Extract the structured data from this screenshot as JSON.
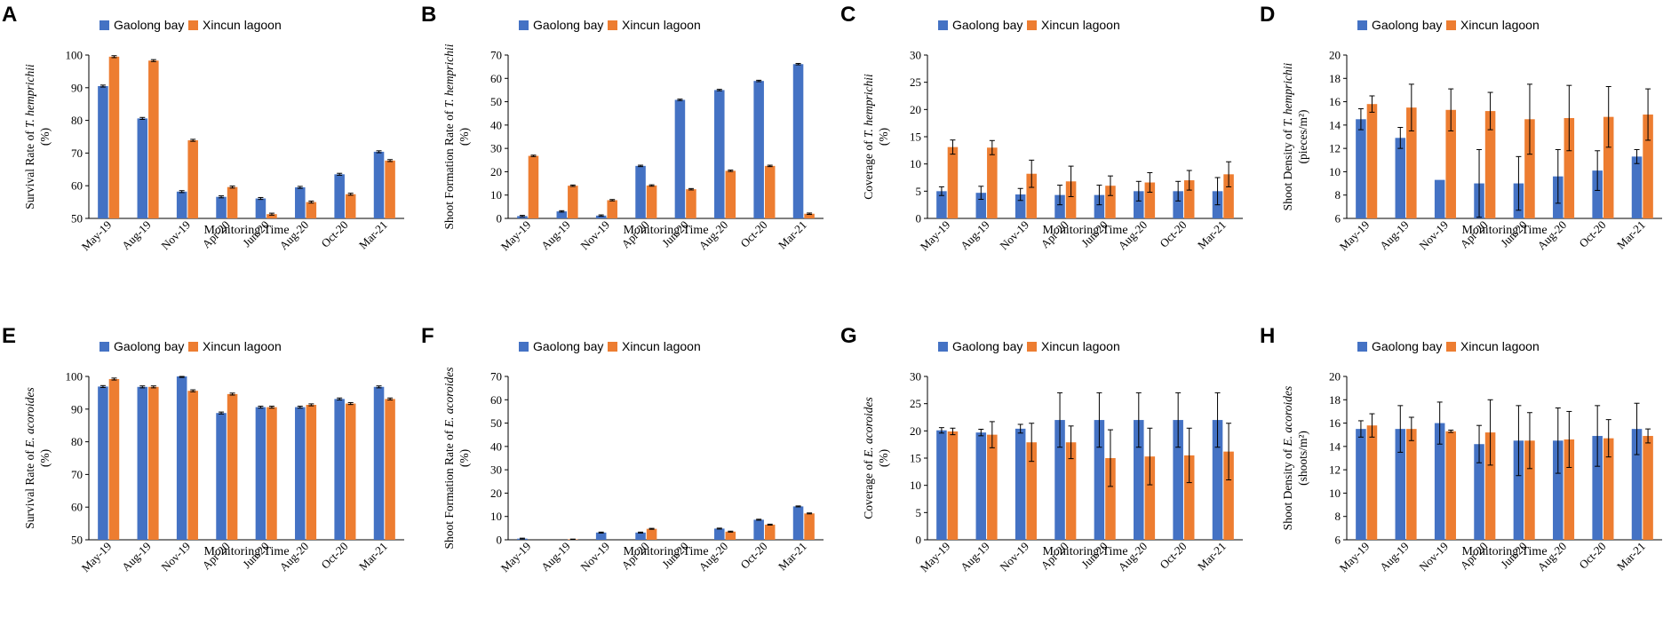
{
  "figure": {
    "colors": {
      "gaolong": "#4472C4",
      "xincun": "#ED7D31",
      "axis": "#000000"
    },
    "series_names": [
      "Gaolong bay",
      "Xincun lagoon"
    ]
  },
  "chart_data": [
    {
      "panel": "A",
      "type": "bar",
      "categories": [
        "May-19",
        "Aug-19",
        "Nov-19",
        "Apr-20",
        "Jun-20",
        "Aug-20",
        "Oct-20",
        "Mar-21"
      ],
      "ylabel_prefix": "Survival Rate of ",
      "ylabel_species": "T. hemprichii",
      "ylabel_unit": "(%)",
      "xlabel": "Monitoring Time",
      "ylim": [
        50,
        100
      ],
      "ystep": 10,
      "series": [
        {
          "name": "Gaolong bay",
          "values": [
            90.5,
            80.6,
            58.2,
            56.6,
            56.1,
            59.5,
            63.5,
            70.4
          ],
          "errors": [
            0.3,
            0.3,
            0.3,
            0.3,
            0.3,
            0.3,
            0.3,
            0.3
          ]
        },
        {
          "name": "Xincun lagoon",
          "values": [
            99.5,
            98.3,
            73.9,
            59.6,
            51.3,
            55.0,
            57.4,
            67.7
          ],
          "errors": [
            0.3,
            0.3,
            0.3,
            0.3,
            0.3,
            0.3,
            0.3,
            0.3
          ]
        }
      ]
    },
    {
      "panel": "B",
      "type": "bar",
      "categories": [
        "May-19",
        "Aug-19",
        "Nov-19",
        "Apr-20",
        "Jun-20",
        "Aug-20",
        "Oct-20",
        "Mar-21"
      ],
      "ylabel_prefix": "Shoot Formation Rate of ",
      "ylabel_species": "T. hemprichii",
      "ylabel_unit": "(%)",
      "xlabel": "Monitoring Time",
      "ylim": [
        0,
        70
      ],
      "ystep": 10,
      "series": [
        {
          "name": "Gaolong bay",
          "values": [
            1.0,
            3.0,
            1.2,
            22.5,
            50.8,
            55.0,
            58.9,
            66.1
          ],
          "errors": [
            0.3,
            0.3,
            0.3,
            0.3,
            0.3,
            0.3,
            0.3,
            0.3
          ]
        },
        {
          "name": "Xincun lagoon",
          "values": [
            26.8,
            14.0,
            7.8,
            14.1,
            12.5,
            20.4,
            22.5,
            2.0
          ],
          "errors": [
            0.3,
            0.3,
            0.3,
            0.3,
            0.3,
            0.3,
            0.3,
            0.3
          ]
        }
      ]
    },
    {
      "panel": "C",
      "type": "bar",
      "categories": [
        "May-19",
        "Aug-19",
        "Nov-19",
        "Apr-20",
        "Jun-20",
        "Aug-20",
        "Oct-20",
        "Mar-21"
      ],
      "ylabel_prefix": "Coverage  of ",
      "ylabel_species": "T. hemprichii",
      "ylabel_unit": "(%)",
      "xlabel": "Monitoring Time",
      "ylim": [
        0,
        30
      ],
      "ystep": 5,
      "series": [
        {
          "name": "Gaolong bay",
          "values": [
            5.0,
            4.7,
            4.4,
            4.3,
            4.3,
            5.0,
            5.0,
            5.0
          ],
          "errors": [
            0.8,
            1.2,
            1.1,
            1.8,
            1.8,
            1.8,
            1.8,
            2.5
          ]
        },
        {
          "name": "Xincun lagoon",
          "values": [
            13.1,
            13.0,
            8.2,
            6.8,
            6.0,
            6.6,
            7.0,
            8.1
          ],
          "errors": [
            1.3,
            1.3,
            2.5,
            2.8,
            1.8,
            1.8,
            1.8,
            2.3
          ]
        }
      ]
    },
    {
      "panel": "D",
      "type": "bar",
      "categories": [
        "May-19",
        "Aug-19",
        "Nov-19",
        "Apr-20",
        "Jun-20",
        "Aug-20",
        "Oct-20",
        "Mar-21"
      ],
      "ylabel_prefix": "Shoot Density of ",
      "ylabel_species": "T. hemprichii",
      "ylabel_unit": "(pieces/m²)",
      "xlabel": "Monitoring Time",
      "ylim": [
        6,
        20
      ],
      "ystep": 2,
      "series": [
        {
          "name": "Gaolong bay",
          "values": [
            14.5,
            12.9,
            9.3,
            9.0,
            9.0,
            9.6,
            10.1,
            11.3
          ],
          "errors": [
            0.9,
            0.9,
            0.0,
            2.9,
            2.3,
            2.3,
            1.7,
            0.6
          ]
        },
        {
          "name": "Xincun lagoon",
          "values": [
            15.8,
            15.5,
            15.3,
            15.2,
            14.5,
            14.6,
            14.7,
            14.9
          ],
          "errors": [
            0.7,
            2.0,
            1.8,
            1.6,
            3.0,
            2.8,
            2.6,
            2.2
          ]
        }
      ]
    },
    {
      "panel": "E",
      "type": "bar",
      "categories": [
        "May-19",
        "Aug-19",
        "Nov-19",
        "Apr-20",
        "Jun-20",
        "Aug-20",
        "Oct-20",
        "Mar-21"
      ],
      "ylabel_prefix": "Survival Rate of ",
      "ylabel_species": "E. acoroides",
      "ylabel_unit": "(%)",
      "xlabel": "Monitoring Time",
      "ylim": [
        50,
        100
      ],
      "ystep": 10,
      "series": [
        {
          "name": "Gaolong bay",
          "values": [
            96.9,
            96.8,
            100.0,
            88.8,
            90.6,
            90.6,
            93.1,
            96.8
          ],
          "errors": [
            0.3,
            0.3,
            0.3,
            0.3,
            0.3,
            0.3,
            0.3,
            0.3
          ]
        },
        {
          "name": "Xincun lagoon",
          "values": [
            99.2,
            96.8,
            95.6,
            94.6,
            90.6,
            91.3,
            91.7,
            93.1
          ],
          "errors": [
            0.3,
            0.3,
            0.3,
            0.3,
            0.3,
            0.3,
            0.3,
            0.3
          ]
        }
      ]
    },
    {
      "panel": "F",
      "type": "bar",
      "categories": [
        "May-19",
        "Aug-19",
        "Nov-19",
        "Apr-20",
        "Jun-20",
        "Aug-20",
        "Oct-20",
        "Mar-21"
      ],
      "ylabel_prefix": "Shoot Formation Rate of ",
      "ylabel_species": "E. acoroides",
      "ylabel_unit": "(%)",
      "xlabel": "Monitoring Time",
      "ylim": [
        0,
        70
      ],
      "ystep": 10,
      "series": [
        {
          "name": "Gaolong bay",
          "values": [
            0.5,
            0.0,
            3.1,
            3.1,
            0.0,
            4.8,
            8.6,
            14.3
          ],
          "errors": [
            0.2,
            0.0,
            0.2,
            0.2,
            0.0,
            0.2,
            0.2,
            0.2
          ]
        },
        {
          "name": "Xincun lagoon",
          "values": [
            0.0,
            0.2,
            0.0,
            4.7,
            0.0,
            3.5,
            6.5,
            11.3
          ],
          "errors": [
            0.0,
            0.1,
            0.0,
            0.2,
            0.0,
            0.2,
            0.2,
            0.2
          ]
        }
      ]
    },
    {
      "panel": "G",
      "type": "bar",
      "categories": [
        "May-19",
        "Aug-19",
        "Nov-19",
        "Apr-20",
        "Jun-20",
        "Aug-20",
        "Oct-20",
        "Mar-21"
      ],
      "ylabel_prefix": "Coverage  of ",
      "ylabel_species": "E. acoroides",
      "ylabel_unit": "(%)",
      "xlabel": "Monitoring Time",
      "ylim": [
        0,
        30
      ],
      "ystep": 5,
      "series": [
        {
          "name": "Gaolong bay",
          "values": [
            20.1,
            19.7,
            20.4,
            22.0,
            22.0,
            22.0,
            22.0,
            22.0
          ],
          "errors": [
            0.5,
            0.6,
            0.8,
            5.0,
            5.0,
            5.0,
            5.0,
            5.0
          ]
        },
        {
          "name": "Xincun lagoon",
          "values": [
            19.9,
            19.3,
            17.9,
            17.9,
            15.0,
            15.3,
            15.5,
            16.2
          ],
          "errors": [
            0.6,
            2.4,
            3.5,
            3.0,
            5.2,
            5.2,
            5.0,
            5.2
          ]
        }
      ]
    },
    {
      "panel": "H",
      "type": "bar",
      "categories": [
        "May-19",
        "Aug-19",
        "Nov-19",
        "Apr-20",
        "Jun-20",
        "Aug-20",
        "Oct-20",
        "Mar-21"
      ],
      "ylabel_prefix": "Shoot Density of ",
      "ylabel_species": "E. acoroides",
      "ylabel_unit": "(shoots/m²)",
      "xlabel": "Monitoring Time",
      "ylim": [
        6,
        20
      ],
      "ystep": 2,
      "series": [
        {
          "name": "Gaolong bay",
          "values": [
            15.5,
            15.5,
            16.0,
            14.2,
            14.5,
            14.5,
            14.9,
            15.5
          ],
          "errors": [
            0.7,
            2.0,
            1.8,
            1.6,
            3.0,
            2.8,
            2.6,
            2.2
          ]
        },
        {
          "name": "Xincun lagoon",
          "values": [
            15.8,
            15.5,
            15.3,
            15.2,
            14.5,
            14.6,
            14.7,
            14.9
          ],
          "errors": [
            1.0,
            1.0,
            0.1,
            2.8,
            2.4,
            2.4,
            1.6,
            0.6
          ]
        }
      ]
    }
  ]
}
